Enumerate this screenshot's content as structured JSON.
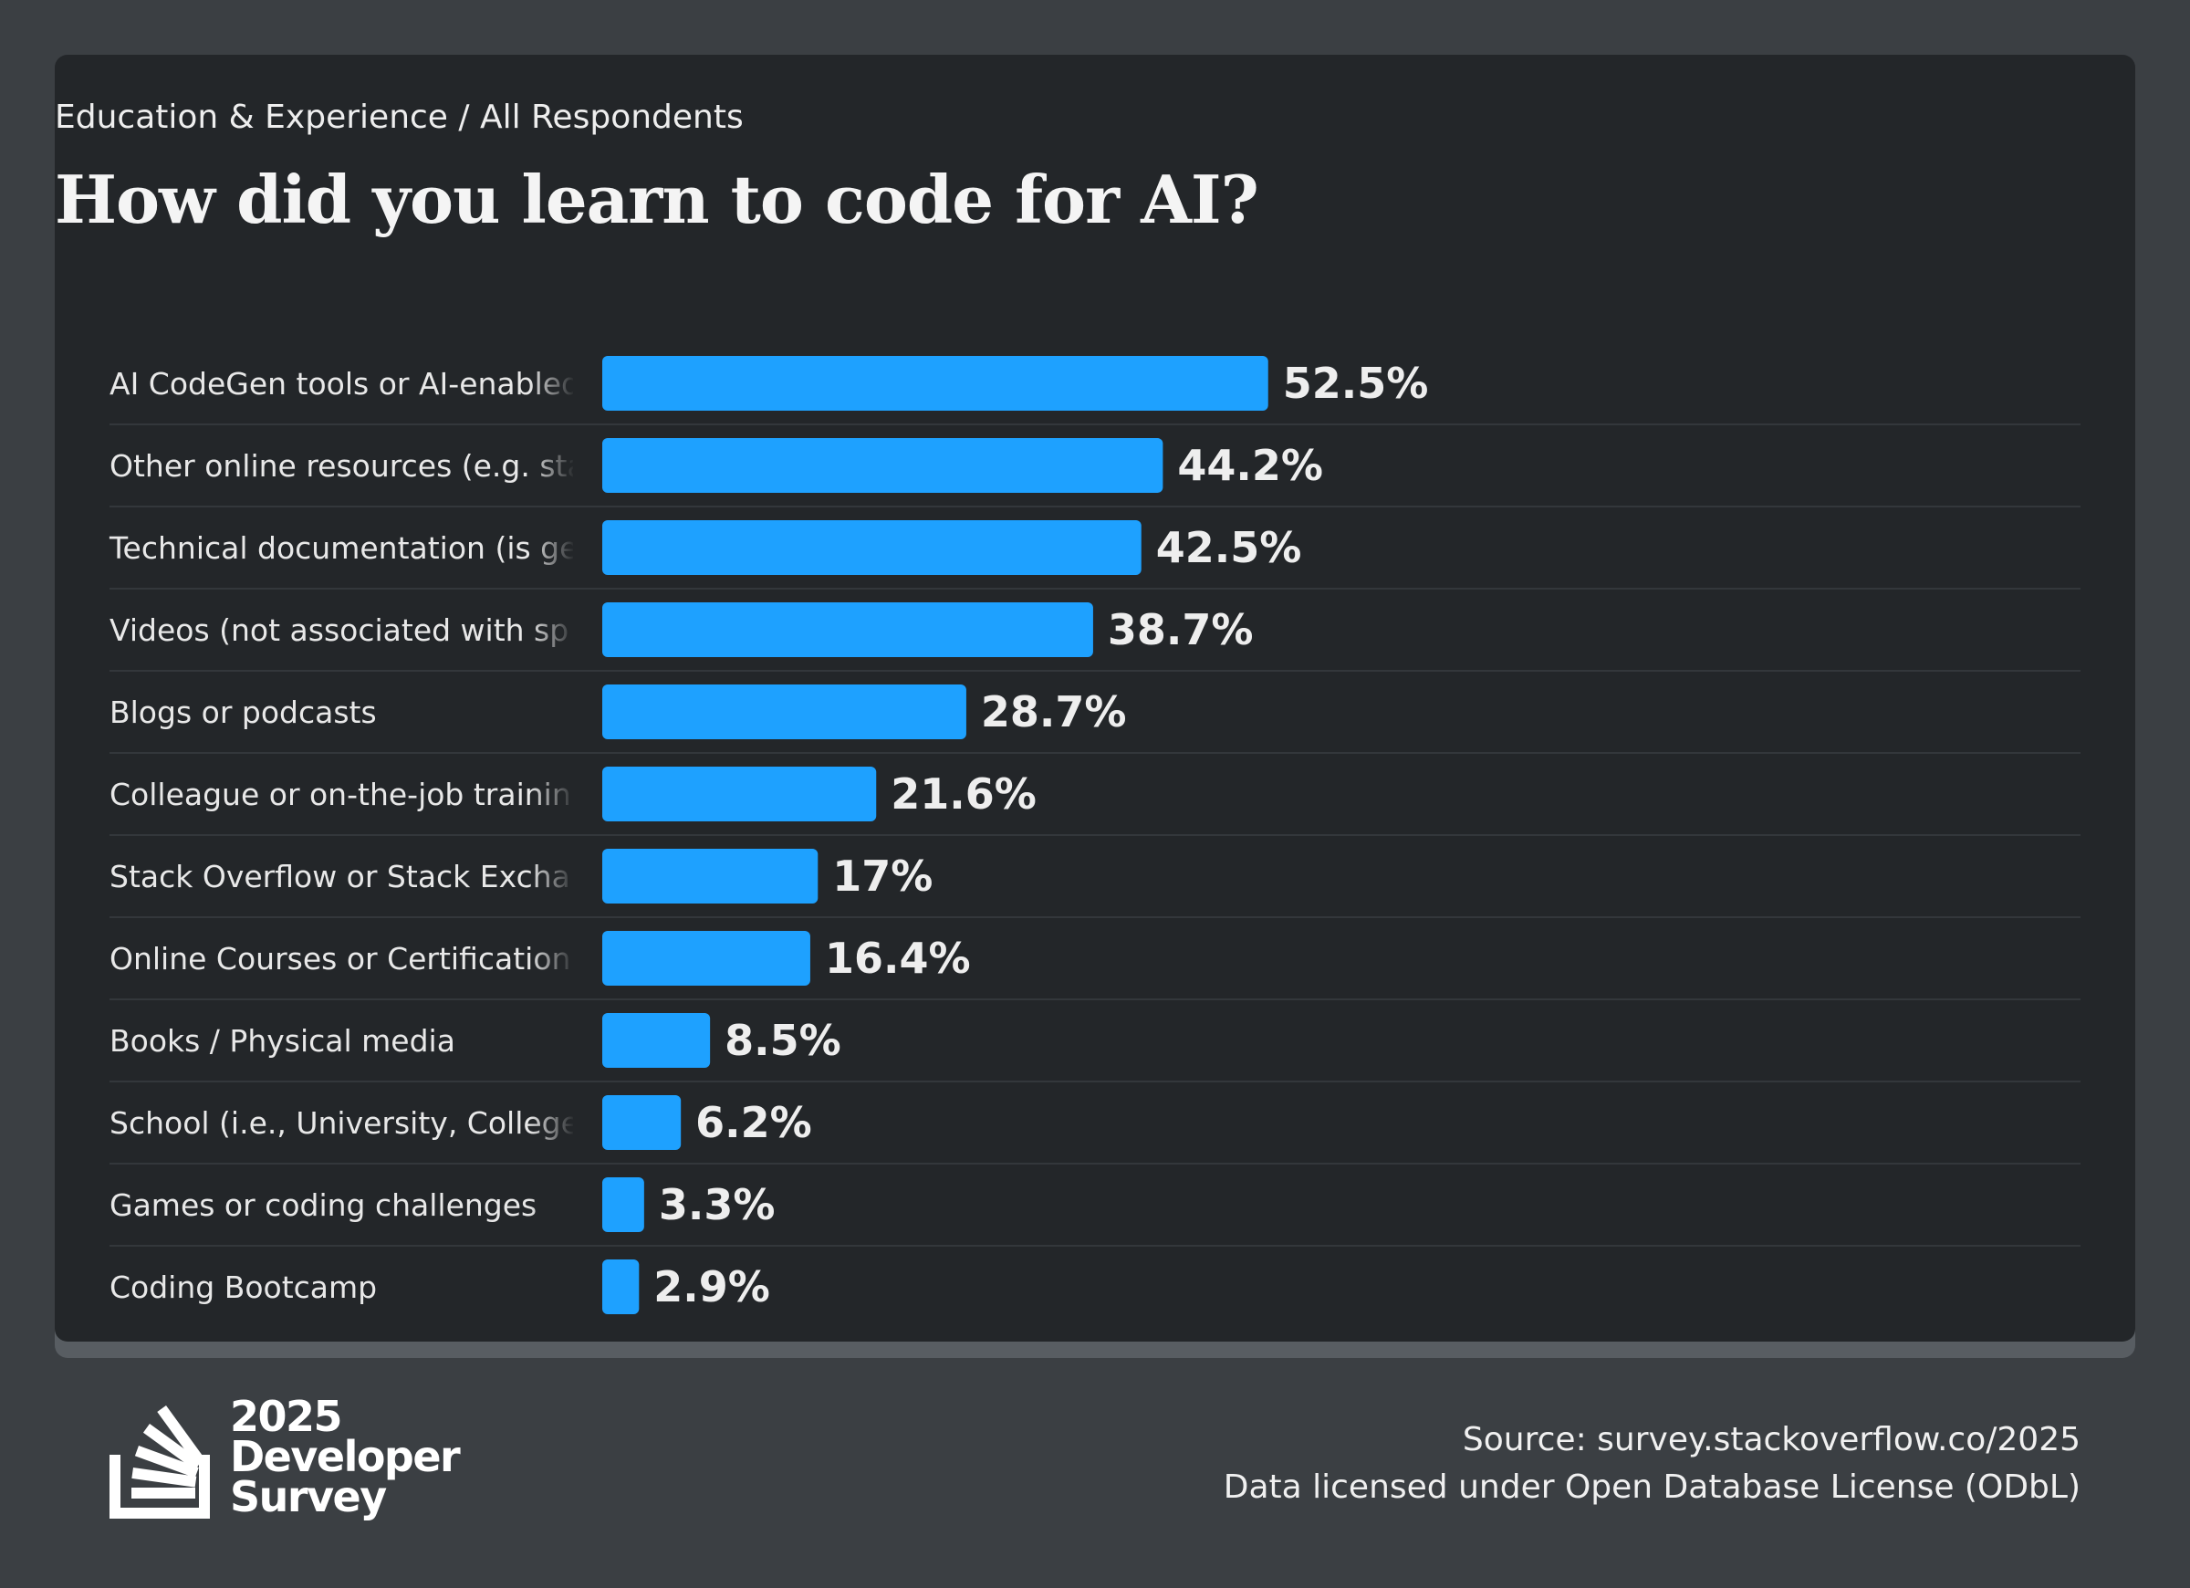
{
  "header": {
    "subtitle": "Education & Experience / All Respondents",
    "title": "How did you learn to code for AI?"
  },
  "chart_data": {
    "type": "bar",
    "orientation": "horizontal",
    "title": "How did you learn to code for AI?",
    "subtitle": "Education & Experience / All Respondents",
    "categories": [
      "AI CodeGen tools or AI-enabled",
      "Other online resources (e.g. sta",
      "Technical documentation (is ge",
      "Videos (not associated with sp",
      "Blogs or podcasts",
      "Colleague or on-the-job trainin",
      "Stack Overflow or Stack Excha",
      "Online Courses or Certification",
      "Books / Physical media",
      "School (i.e., University, College",
      "Games or coding challenges",
      "Coding Bootcamp"
    ],
    "values": [
      52.5,
      44.2,
      42.5,
      38.7,
      28.7,
      21.6,
      17,
      16.4,
      8.5,
      6.2,
      3.3,
      2.9
    ],
    "value_labels": [
      "52.5%",
      "44.2%",
      "42.5%",
      "38.7%",
      "28.7%",
      "21.6%",
      "17%",
      "16.4%",
      "8.5%",
      "6.2%",
      "3.3%",
      "2.9%"
    ],
    "unit": "%",
    "xlim": [
      0,
      100
    ],
    "grid": false,
    "bar_color": "#1ea1ff"
  },
  "footer": {
    "logo_year": "2025",
    "logo_line1": "Developer",
    "logo_line2": "Survey",
    "source": "Source: survey.stackoverflow.co/2025",
    "license": "Data licensed under Open Database License (ODbL)"
  },
  "colors": {
    "page_background": "#3b3f43",
    "card_background": "#232629",
    "bar": "#1ea1ff",
    "text": "#eeeeee"
  }
}
